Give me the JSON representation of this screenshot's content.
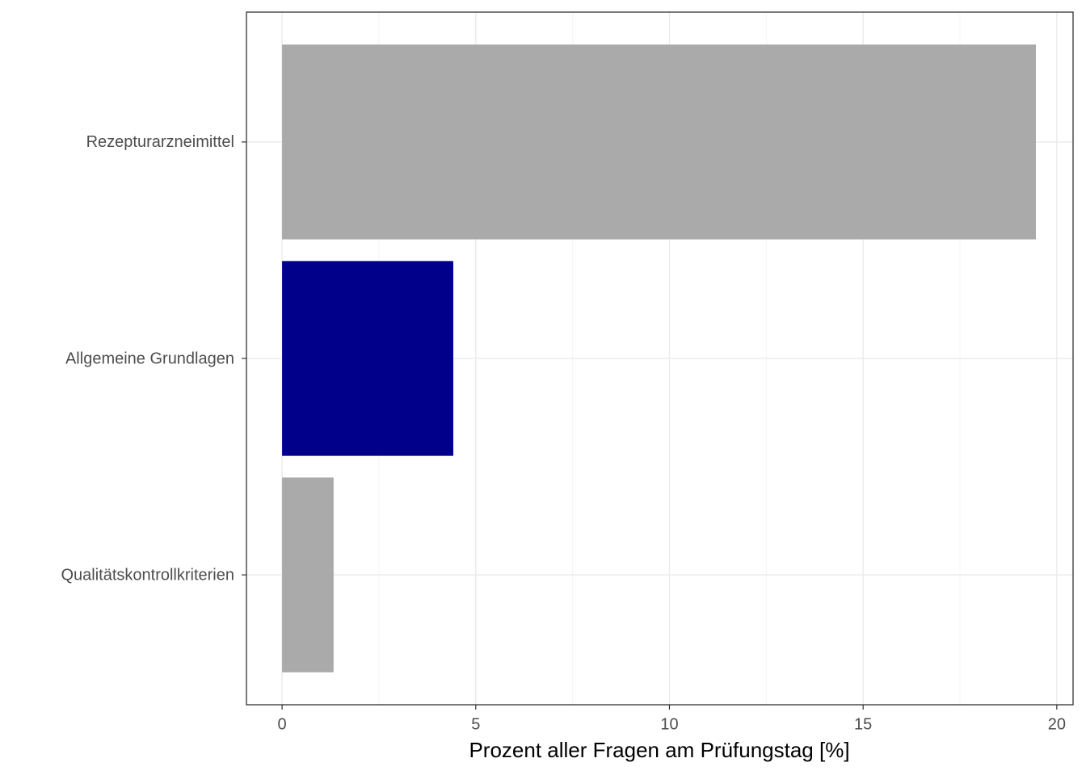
{
  "chart_data": {
    "type": "barh",
    "x_label": "Prozent aller Fragen am Prüfungstag [%]",
    "categories": [
      "Rezepturarzneimittel",
      "Allgemeine Grundlagen",
      "Qualitätskontrollkriterien"
    ],
    "values": [
      19.46,
      4.42,
      1.33
    ],
    "colors": [
      "#aaaaaa",
      "#00008b",
      "#aaaaaa"
    ],
    "xlim": [
      -0.92,
      20.42
    ],
    "xticks": [
      0,
      5,
      10,
      15,
      20
    ],
    "xminor": [
      2.5,
      7.5,
      12.5,
      17.5
    ],
    "grid": true
  }
}
